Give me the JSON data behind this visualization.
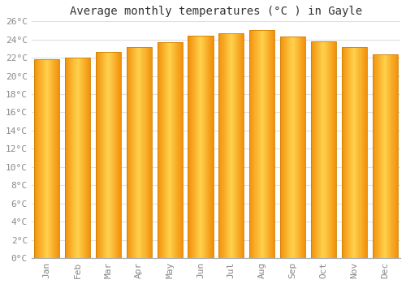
{
  "months": [
    "Jan",
    "Feb",
    "Mar",
    "Apr",
    "May",
    "Jun",
    "Jul",
    "Aug",
    "Sep",
    "Oct",
    "Nov",
    "Dec"
  ],
  "temperatures": [
    21.8,
    22.0,
    22.6,
    23.2,
    23.7,
    24.4,
    24.7,
    25.0,
    24.3,
    23.8,
    23.2,
    22.4
  ],
  "bar_color_center": "#FFB733",
  "bar_color_edge": "#F0920A",
  "title": "Average monthly temperatures (°C ) in Gayle",
  "ylim": [
    0,
    26
  ],
  "ytick_values": [
    0,
    2,
    4,
    6,
    8,
    10,
    12,
    14,
    16,
    18,
    20,
    22,
    24,
    26
  ],
  "background_color": "#FFFFFF",
  "grid_color": "#E0E0E0",
  "title_fontsize": 10,
  "tick_fontsize": 8,
  "tick_color": "#888888",
  "font_family": "monospace",
  "bar_width": 0.82
}
